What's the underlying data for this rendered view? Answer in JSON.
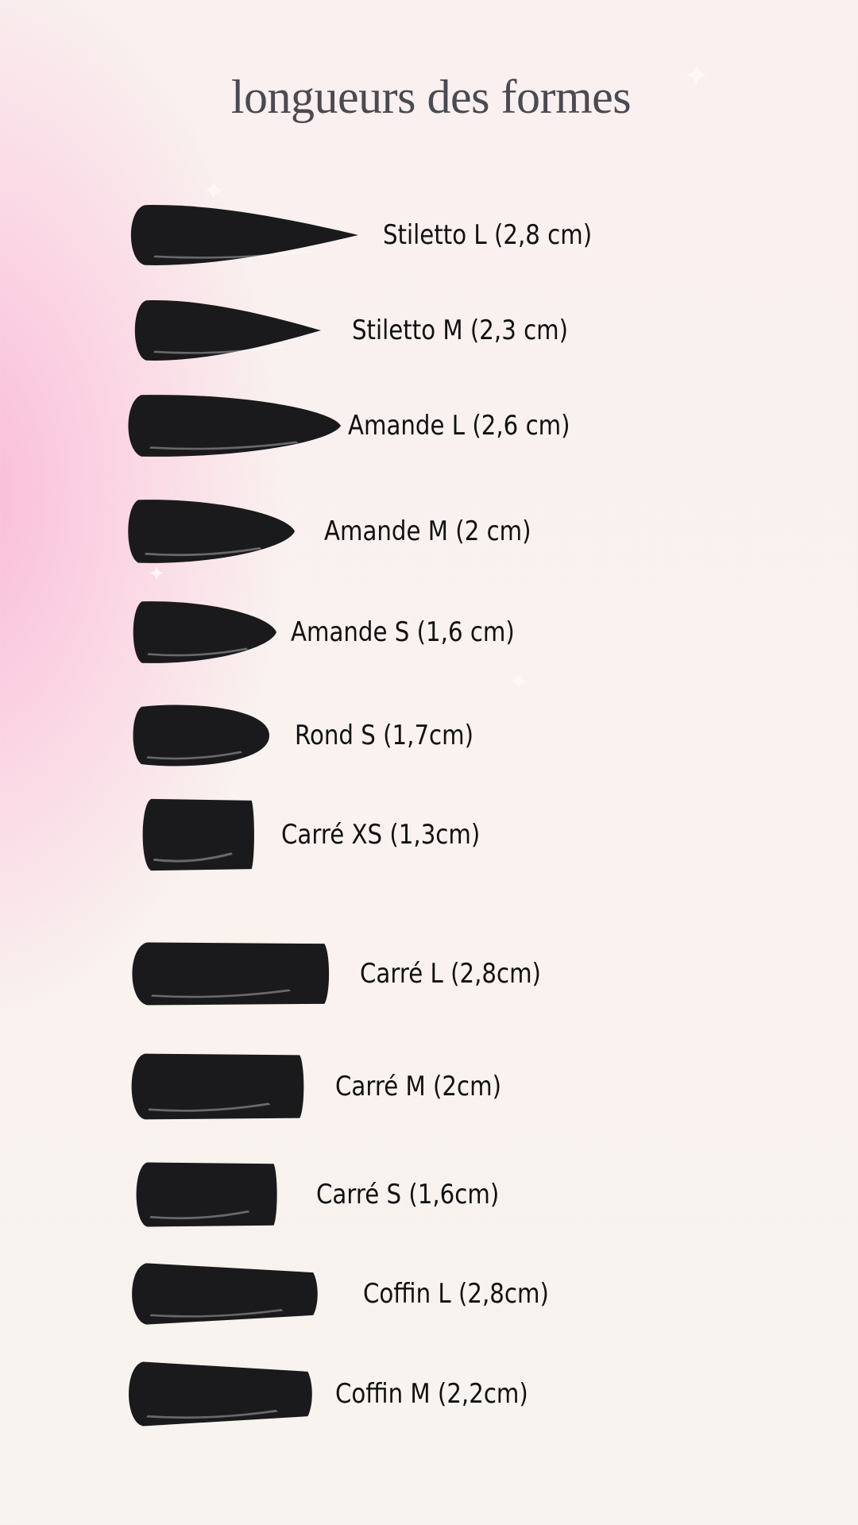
{
  "title": "longueurs des formes",
  "colors": {
    "nail": "#1a1a1c",
    "text": "#111111",
    "title": "#4a4a52",
    "accent_pink": "#f9b9d5"
  },
  "items": [
    {
      "label": "Stiletto L (2,8 cm)",
      "shape": "stiletto"
    },
    {
      "label": "Stiletto M (2,3 cm)",
      "shape": "stiletto"
    },
    {
      "label": "Amande L (2,6 cm)",
      "shape": "almond"
    },
    {
      "label": "Amande M (2 cm)",
      "shape": "almond"
    },
    {
      "label": "Amande S (1,6 cm)",
      "shape": "almond"
    },
    {
      "label": "Rond S (1,7cm)",
      "shape": "round"
    },
    {
      "label": "Carré XS (1,3cm)",
      "shape": "square"
    },
    {
      "label": "Carré L (2,8cm)",
      "shape": "square"
    },
    {
      "label": "Carré M (2cm)",
      "shape": "square"
    },
    {
      "label": "Carré S (1,6cm)",
      "shape": "square"
    },
    {
      "label": "Coffin L (2,8cm)",
      "shape": "coffin"
    },
    {
      "label": "Coffin M (2,2cm)",
      "shape": "coffin"
    }
  ]
}
